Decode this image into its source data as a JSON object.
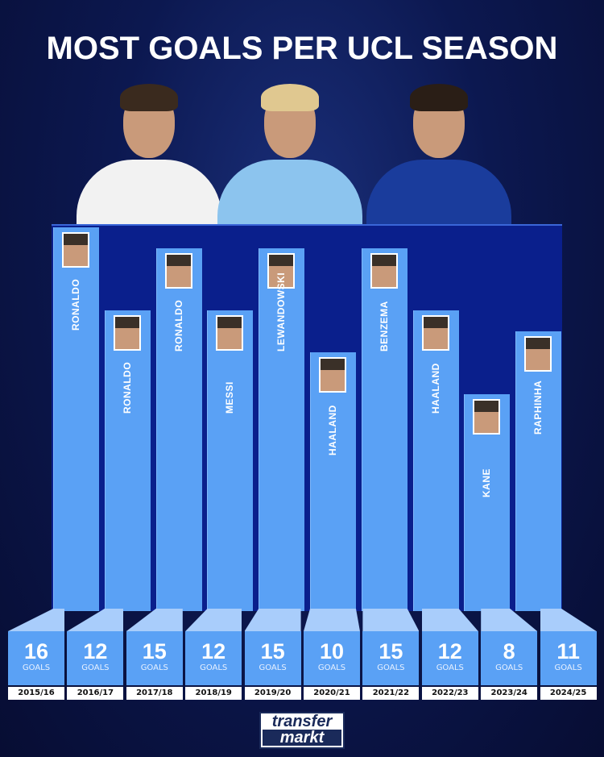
{
  "chart_data": {
    "type": "bar",
    "title": "MOST GOALS PER UCL SEASON",
    "categories": [
      "2015/16",
      "2016/17",
      "2017/18",
      "2018/19",
      "2019/20",
      "2020/21",
      "2021/22",
      "2022/23",
      "2023/24",
      "2024/25"
    ],
    "players": [
      "RONALDO",
      "RONALDO",
      "RONALDO",
      "MESSI",
      "LEWANDOWSKI",
      "HAALAND",
      "BENZEMA",
      "HAALAND",
      "KANE",
      "RAPHINHA"
    ],
    "values": [
      16,
      12,
      15,
      12,
      15,
      10,
      15,
      12,
      8,
      11
    ],
    "unit_label": "GOALS",
    "bar_color": "#5aa1f5",
    "panel_color": "#0a1f8c"
  },
  "featured_players": [
    {
      "name": "Ronaldo",
      "kit": "#f2f2f2",
      "hair": "#3a2a1e"
    },
    {
      "name": "Haaland",
      "kit": "#8cc4ee",
      "hair": "#e0c890"
    },
    {
      "name": "Raphinha",
      "kit": "#1a3c9c",
      "hair": "#2a1e16"
    }
  ],
  "logo": {
    "line1": "transfer",
    "line2": "markt"
  }
}
